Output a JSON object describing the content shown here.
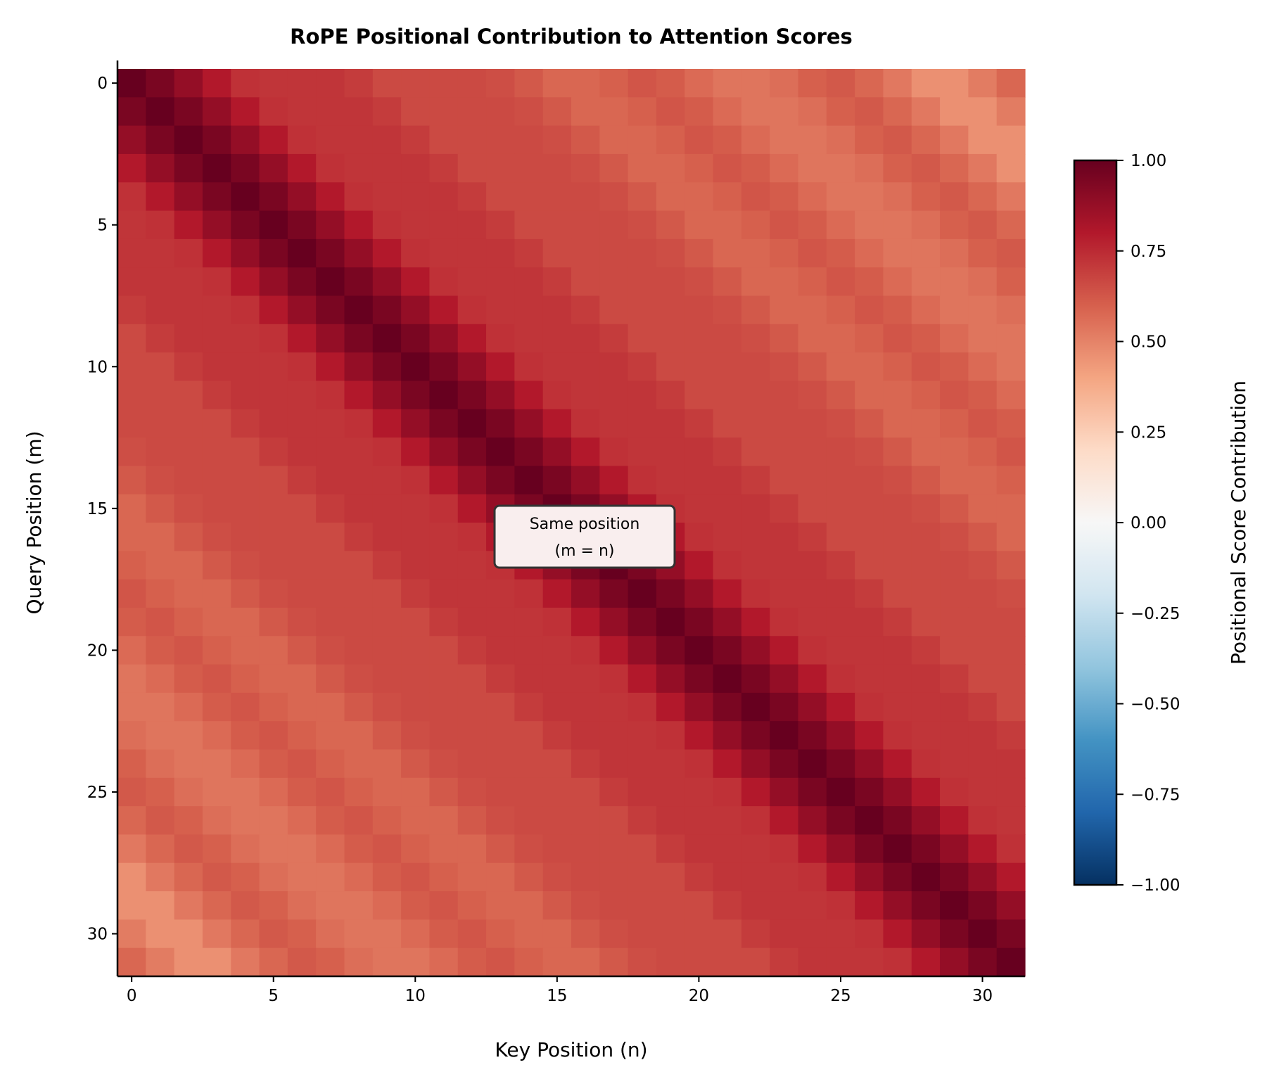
{
  "chart_data": {
    "type": "heatmap",
    "title": "RoPE Positional Contribution to Attention Scores",
    "xlabel": "Key Position (n)",
    "ylabel": "Query Position (m)",
    "x_ticks": [
      0,
      5,
      10,
      15,
      20,
      25,
      30
    ],
    "y_ticks": [
      0,
      5,
      10,
      15,
      20,
      25,
      30
    ],
    "colormap": "RdBu_r",
    "colormap_stops": [
      "#053061",
      "#2166ac",
      "#4393c3",
      "#92c5de",
      "#d1e5f0",
      "#f7f7f7",
      "#fddbc7",
      "#f4a582",
      "#d6604d",
      "#b2182b",
      "#67001f"
    ],
    "vmin": -1.0,
    "vmax": 1.0,
    "colorbar": {
      "label": "Positional Score Contribution",
      "ticks": [
        -1.0,
        -0.75,
        -0.5,
        -0.25,
        0.0,
        0.25,
        0.5,
        0.75,
        1.0
      ],
      "tick_labels": [
        "−1.00",
        "−0.75",
        "−0.50",
        "−0.25",
        "0.00",
        "0.25",
        "0.50",
        "0.75",
        "1.00"
      ]
    },
    "annotation": {
      "line1": "Same position",
      "line2": "(m = n)",
      "at": [
        15,
        16.5
      ]
    },
    "values": [
      [
        1.0,
        0.95,
        0.88,
        0.8,
        0.73,
        0.72,
        0.72,
        0.72,
        0.7,
        0.66,
        0.66,
        0.66,
        0.66,
        0.65,
        0.62,
        0.58,
        0.58,
        0.6,
        0.63,
        0.61,
        0.57,
        0.54,
        0.54,
        0.56,
        0.6,
        0.62,
        0.58,
        0.53,
        0.46,
        0.46,
        0.52,
        0.58
      ],
      [
        0.95,
        1.0,
        0.95,
        0.88,
        0.8,
        0.73,
        0.72,
        0.72,
        0.72,
        0.7,
        0.66,
        0.66,
        0.66,
        0.66,
        0.65,
        0.62,
        0.58,
        0.58,
        0.6,
        0.63,
        0.61,
        0.57,
        0.54,
        0.54,
        0.56,
        0.6,
        0.62,
        0.58,
        0.53,
        0.46,
        0.46,
        0.52
      ],
      [
        0.88,
        0.95,
        1.0,
        0.95,
        0.88,
        0.8,
        0.73,
        0.72,
        0.72,
        0.72,
        0.7,
        0.66,
        0.66,
        0.66,
        0.66,
        0.65,
        0.62,
        0.58,
        0.58,
        0.6,
        0.63,
        0.61,
        0.57,
        0.54,
        0.54,
        0.56,
        0.6,
        0.62,
        0.58,
        0.53,
        0.46,
        0.46
      ],
      [
        0.8,
        0.88,
        0.95,
        1.0,
        0.95,
        0.88,
        0.8,
        0.73,
        0.72,
        0.72,
        0.72,
        0.7,
        0.66,
        0.66,
        0.66,
        0.66,
        0.65,
        0.62,
        0.58,
        0.58,
        0.6,
        0.63,
        0.61,
        0.57,
        0.54,
        0.54,
        0.56,
        0.6,
        0.62,
        0.58,
        0.53,
        0.46
      ],
      [
        0.73,
        0.8,
        0.88,
        0.95,
        1.0,
        0.95,
        0.88,
        0.8,
        0.73,
        0.72,
        0.72,
        0.72,
        0.7,
        0.66,
        0.66,
        0.66,
        0.66,
        0.65,
        0.62,
        0.58,
        0.58,
        0.6,
        0.63,
        0.61,
        0.57,
        0.54,
        0.54,
        0.56,
        0.6,
        0.62,
        0.58,
        0.53
      ],
      [
        0.72,
        0.73,
        0.8,
        0.88,
        0.95,
        1.0,
        0.95,
        0.88,
        0.8,
        0.73,
        0.72,
        0.72,
        0.72,
        0.7,
        0.66,
        0.66,
        0.66,
        0.66,
        0.65,
        0.62,
        0.58,
        0.58,
        0.6,
        0.63,
        0.61,
        0.57,
        0.54,
        0.54,
        0.56,
        0.6,
        0.62,
        0.58
      ],
      [
        0.72,
        0.72,
        0.73,
        0.8,
        0.88,
        0.95,
        1.0,
        0.95,
        0.88,
        0.8,
        0.73,
        0.72,
        0.72,
        0.72,
        0.7,
        0.66,
        0.66,
        0.66,
        0.66,
        0.65,
        0.62,
        0.58,
        0.58,
        0.6,
        0.63,
        0.61,
        0.57,
        0.54,
        0.54,
        0.56,
        0.6,
        0.62
      ],
      [
        0.72,
        0.72,
        0.72,
        0.73,
        0.8,
        0.88,
        0.95,
        1.0,
        0.95,
        0.88,
        0.8,
        0.73,
        0.72,
        0.72,
        0.72,
        0.7,
        0.66,
        0.66,
        0.66,
        0.66,
        0.65,
        0.62,
        0.58,
        0.58,
        0.6,
        0.63,
        0.61,
        0.57,
        0.54,
        0.54,
        0.56,
        0.6
      ],
      [
        0.7,
        0.72,
        0.72,
        0.72,
        0.73,
        0.8,
        0.88,
        0.95,
        1.0,
        0.95,
        0.88,
        0.8,
        0.73,
        0.72,
        0.72,
        0.72,
        0.7,
        0.66,
        0.66,
        0.66,
        0.66,
        0.65,
        0.62,
        0.58,
        0.58,
        0.6,
        0.63,
        0.61,
        0.57,
        0.54,
        0.54,
        0.56
      ],
      [
        0.66,
        0.7,
        0.72,
        0.72,
        0.72,
        0.73,
        0.8,
        0.88,
        0.95,
        1.0,
        0.95,
        0.88,
        0.8,
        0.73,
        0.72,
        0.72,
        0.72,
        0.7,
        0.66,
        0.66,
        0.66,
        0.66,
        0.65,
        0.62,
        0.58,
        0.58,
        0.6,
        0.63,
        0.61,
        0.57,
        0.54,
        0.54
      ],
      [
        0.66,
        0.66,
        0.7,
        0.72,
        0.72,
        0.72,
        0.73,
        0.8,
        0.88,
        0.95,
        1.0,
        0.95,
        0.88,
        0.8,
        0.73,
        0.72,
        0.72,
        0.72,
        0.7,
        0.66,
        0.66,
        0.66,
        0.66,
        0.65,
        0.62,
        0.58,
        0.58,
        0.6,
        0.63,
        0.61,
        0.57,
        0.54
      ],
      [
        0.66,
        0.66,
        0.66,
        0.7,
        0.72,
        0.72,
        0.72,
        0.73,
        0.8,
        0.88,
        0.95,
        1.0,
        0.95,
        0.88,
        0.8,
        0.73,
        0.72,
        0.72,
        0.72,
        0.7,
        0.66,
        0.66,
        0.66,
        0.66,
        0.65,
        0.62,
        0.58,
        0.58,
        0.6,
        0.63,
        0.61,
        0.57
      ],
      [
        0.66,
        0.66,
        0.66,
        0.66,
        0.7,
        0.72,
        0.72,
        0.72,
        0.73,
        0.8,
        0.88,
        0.95,
        1.0,
        0.95,
        0.88,
        0.8,
        0.73,
        0.72,
        0.72,
        0.72,
        0.7,
        0.66,
        0.66,
        0.66,
        0.66,
        0.65,
        0.62,
        0.58,
        0.58,
        0.6,
        0.63,
        0.61
      ],
      [
        0.65,
        0.66,
        0.66,
        0.66,
        0.66,
        0.7,
        0.72,
        0.72,
        0.72,
        0.73,
        0.8,
        0.88,
        0.95,
        1.0,
        0.95,
        0.88,
        0.8,
        0.73,
        0.72,
        0.72,
        0.72,
        0.7,
        0.66,
        0.66,
        0.66,
        0.66,
        0.65,
        0.62,
        0.58,
        0.58,
        0.6,
        0.63
      ],
      [
        0.62,
        0.65,
        0.66,
        0.66,
        0.66,
        0.66,
        0.7,
        0.72,
        0.72,
        0.72,
        0.73,
        0.8,
        0.88,
        0.95,
        1.0,
        0.95,
        0.88,
        0.8,
        0.73,
        0.72,
        0.72,
        0.72,
        0.7,
        0.66,
        0.66,
        0.66,
        0.66,
        0.65,
        0.62,
        0.58,
        0.58,
        0.6
      ],
      [
        0.58,
        0.62,
        0.65,
        0.66,
        0.66,
        0.66,
        0.66,
        0.7,
        0.72,
        0.72,
        0.72,
        0.73,
        0.8,
        0.88,
        0.95,
        1.0,
        0.95,
        0.88,
        0.8,
        0.73,
        0.72,
        0.72,
        0.72,
        0.7,
        0.66,
        0.66,
        0.66,
        0.66,
        0.65,
        0.62,
        0.58,
        0.58
      ],
      [
        0.58,
        0.58,
        0.62,
        0.65,
        0.66,
        0.66,
        0.66,
        0.66,
        0.7,
        0.72,
        0.72,
        0.72,
        0.73,
        0.8,
        0.88,
        0.95,
        1.0,
        0.95,
        0.88,
        0.8,
        0.73,
        0.72,
        0.72,
        0.72,
        0.7,
        0.66,
        0.66,
        0.66,
        0.66,
        0.65,
        0.62,
        0.58
      ],
      [
        0.6,
        0.58,
        0.58,
        0.62,
        0.65,
        0.66,
        0.66,
        0.66,
        0.66,
        0.7,
        0.72,
        0.72,
        0.72,
        0.73,
        0.8,
        0.88,
        0.95,
        1.0,
        0.95,
        0.88,
        0.8,
        0.73,
        0.72,
        0.72,
        0.72,
        0.7,
        0.66,
        0.66,
        0.66,
        0.66,
        0.65,
        0.62
      ],
      [
        0.63,
        0.6,
        0.58,
        0.58,
        0.62,
        0.65,
        0.66,
        0.66,
        0.66,
        0.66,
        0.7,
        0.72,
        0.72,
        0.72,
        0.73,
        0.8,
        0.88,
        0.95,
        1.0,
        0.95,
        0.88,
        0.8,
        0.73,
        0.72,
        0.72,
        0.72,
        0.7,
        0.66,
        0.66,
        0.66,
        0.66,
        0.65
      ],
      [
        0.61,
        0.63,
        0.6,
        0.58,
        0.58,
        0.62,
        0.65,
        0.66,
        0.66,
        0.66,
        0.66,
        0.7,
        0.72,
        0.72,
        0.72,
        0.73,
        0.8,
        0.88,
        0.95,
        1.0,
        0.95,
        0.88,
        0.8,
        0.73,
        0.72,
        0.72,
        0.72,
        0.7,
        0.66,
        0.66,
        0.66,
        0.66
      ],
      [
        0.57,
        0.61,
        0.63,
        0.6,
        0.58,
        0.58,
        0.62,
        0.65,
        0.66,
        0.66,
        0.66,
        0.66,
        0.7,
        0.72,
        0.72,
        0.72,
        0.73,
        0.8,
        0.88,
        0.95,
        1.0,
        0.95,
        0.88,
        0.8,
        0.73,
        0.72,
        0.72,
        0.72,
        0.7,
        0.66,
        0.66,
        0.66
      ],
      [
        0.54,
        0.57,
        0.61,
        0.63,
        0.6,
        0.58,
        0.58,
        0.62,
        0.65,
        0.66,
        0.66,
        0.66,
        0.66,
        0.7,
        0.72,
        0.72,
        0.72,
        0.73,
        0.8,
        0.88,
        0.95,
        1.0,
        0.95,
        0.88,
        0.8,
        0.73,
        0.72,
        0.72,
        0.72,
        0.7,
        0.66,
        0.66
      ],
      [
        0.54,
        0.54,
        0.57,
        0.61,
        0.63,
        0.6,
        0.58,
        0.58,
        0.62,
        0.65,
        0.66,
        0.66,
        0.66,
        0.66,
        0.7,
        0.72,
        0.72,
        0.72,
        0.73,
        0.8,
        0.88,
        0.95,
        1.0,
        0.95,
        0.88,
        0.8,
        0.73,
        0.72,
        0.72,
        0.72,
        0.7,
        0.66
      ],
      [
        0.56,
        0.54,
        0.54,
        0.57,
        0.61,
        0.63,
        0.6,
        0.58,
        0.58,
        0.62,
        0.65,
        0.66,
        0.66,
        0.66,
        0.66,
        0.7,
        0.72,
        0.72,
        0.72,
        0.73,
        0.8,
        0.88,
        0.95,
        1.0,
        0.95,
        0.88,
        0.8,
        0.73,
        0.72,
        0.72,
        0.72,
        0.7
      ],
      [
        0.6,
        0.56,
        0.54,
        0.54,
        0.57,
        0.61,
        0.63,
        0.6,
        0.58,
        0.58,
        0.62,
        0.65,
        0.66,
        0.66,
        0.66,
        0.66,
        0.7,
        0.72,
        0.72,
        0.72,
        0.73,
        0.8,
        0.88,
        0.95,
        1.0,
        0.95,
        0.88,
        0.8,
        0.73,
        0.72,
        0.72,
        0.72
      ],
      [
        0.62,
        0.6,
        0.56,
        0.54,
        0.54,
        0.57,
        0.61,
        0.63,
        0.6,
        0.58,
        0.58,
        0.62,
        0.65,
        0.66,
        0.66,
        0.66,
        0.66,
        0.7,
        0.72,
        0.72,
        0.72,
        0.73,
        0.8,
        0.88,
        0.95,
        1.0,
        0.95,
        0.88,
        0.8,
        0.73,
        0.72,
        0.72
      ],
      [
        0.58,
        0.62,
        0.6,
        0.56,
        0.54,
        0.54,
        0.57,
        0.61,
        0.63,
        0.6,
        0.58,
        0.58,
        0.62,
        0.65,
        0.66,
        0.66,
        0.66,
        0.66,
        0.7,
        0.72,
        0.72,
        0.72,
        0.73,
        0.8,
        0.88,
        0.95,
        1.0,
        0.95,
        0.88,
        0.8,
        0.73,
        0.72
      ],
      [
        0.53,
        0.58,
        0.62,
        0.6,
        0.56,
        0.54,
        0.54,
        0.57,
        0.61,
        0.63,
        0.6,
        0.58,
        0.58,
        0.62,
        0.65,
        0.66,
        0.66,
        0.66,
        0.66,
        0.7,
        0.72,
        0.72,
        0.72,
        0.73,
        0.8,
        0.88,
        0.95,
        1.0,
        0.95,
        0.88,
        0.8,
        0.73
      ],
      [
        0.46,
        0.53,
        0.58,
        0.62,
        0.6,
        0.56,
        0.54,
        0.54,
        0.57,
        0.61,
        0.63,
        0.6,
        0.58,
        0.58,
        0.62,
        0.65,
        0.66,
        0.66,
        0.66,
        0.66,
        0.7,
        0.72,
        0.72,
        0.72,
        0.73,
        0.8,
        0.88,
        0.95,
        1.0,
        0.95,
        0.88,
        0.8
      ],
      [
        0.46,
        0.46,
        0.53,
        0.58,
        0.62,
        0.6,
        0.56,
        0.54,
        0.54,
        0.57,
        0.61,
        0.63,
        0.6,
        0.58,
        0.58,
        0.62,
        0.65,
        0.66,
        0.66,
        0.66,
        0.66,
        0.7,
        0.72,
        0.72,
        0.72,
        0.73,
        0.8,
        0.88,
        0.95,
        1.0,
        0.95,
        0.88
      ],
      [
        0.52,
        0.46,
        0.46,
        0.53,
        0.58,
        0.62,
        0.6,
        0.56,
        0.54,
        0.54,
        0.57,
        0.61,
        0.63,
        0.6,
        0.58,
        0.58,
        0.62,
        0.65,
        0.66,
        0.66,
        0.66,
        0.66,
        0.7,
        0.72,
        0.72,
        0.72,
        0.73,
        0.8,
        0.88,
        0.95,
        1.0,
        0.95
      ],
      [
        0.58,
        0.52,
        0.46,
        0.46,
        0.53,
        0.58,
        0.62,
        0.6,
        0.56,
        0.54,
        0.54,
        0.57,
        0.61,
        0.63,
        0.6,
        0.58,
        0.58,
        0.62,
        0.65,
        0.66,
        0.66,
        0.66,
        0.66,
        0.7,
        0.72,
        0.72,
        0.72,
        0.73,
        0.8,
        0.88,
        0.95,
        1.0
      ]
    ]
  }
}
